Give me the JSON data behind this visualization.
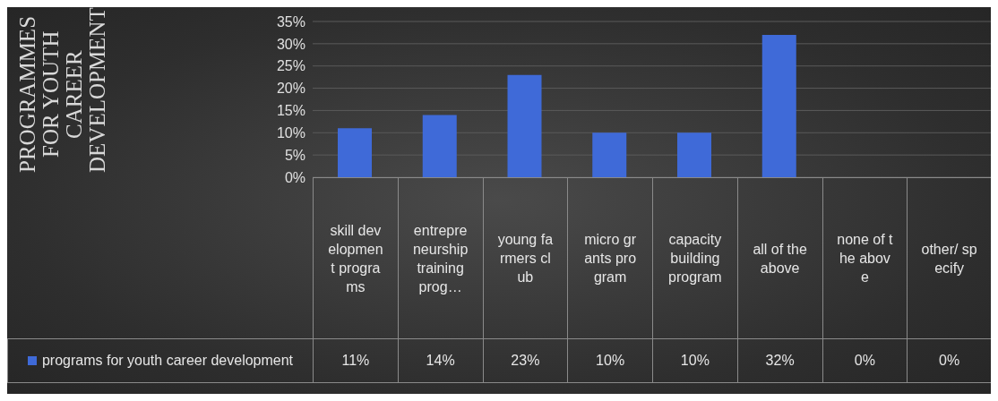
{
  "chart_data": {
    "type": "bar",
    "title": "PROGRAMMES FOR YOUTH CAREER DEVELOPMENT",
    "categories": [
      "skill development programs",
      "entrepreneurship training prog…",
      "young farmers club",
      "micro grants program",
      "capacity building program",
      "all of the above",
      "none of the above",
      "other/ specify"
    ],
    "series": [
      {
        "name": "programs for youth career development",
        "color": "#3f6ad8",
        "values": [
          11,
          14,
          23,
          10,
          10,
          32,
          0,
          0
        ],
        "value_labels": [
          "11%",
          "14%",
          "23%",
          "10%",
          "10%",
          "32%",
          "0%",
          "0%"
        ]
      }
    ],
    "ylim": [
      0,
      35
    ],
    "yticks": [
      {
        "value": 0,
        "label": "0%"
      },
      {
        "value": 5,
        "label": "5%"
      },
      {
        "value": 10,
        "label": "10%"
      },
      {
        "value": 15,
        "label": "15%"
      },
      {
        "value": 20,
        "label": "20%"
      },
      {
        "value": 25,
        "label": "25%"
      },
      {
        "value": 30,
        "label": "30%"
      },
      {
        "value": 35,
        "label": "35%"
      }
    ],
    "grid": "y",
    "legend": "bottom left"
  }
}
